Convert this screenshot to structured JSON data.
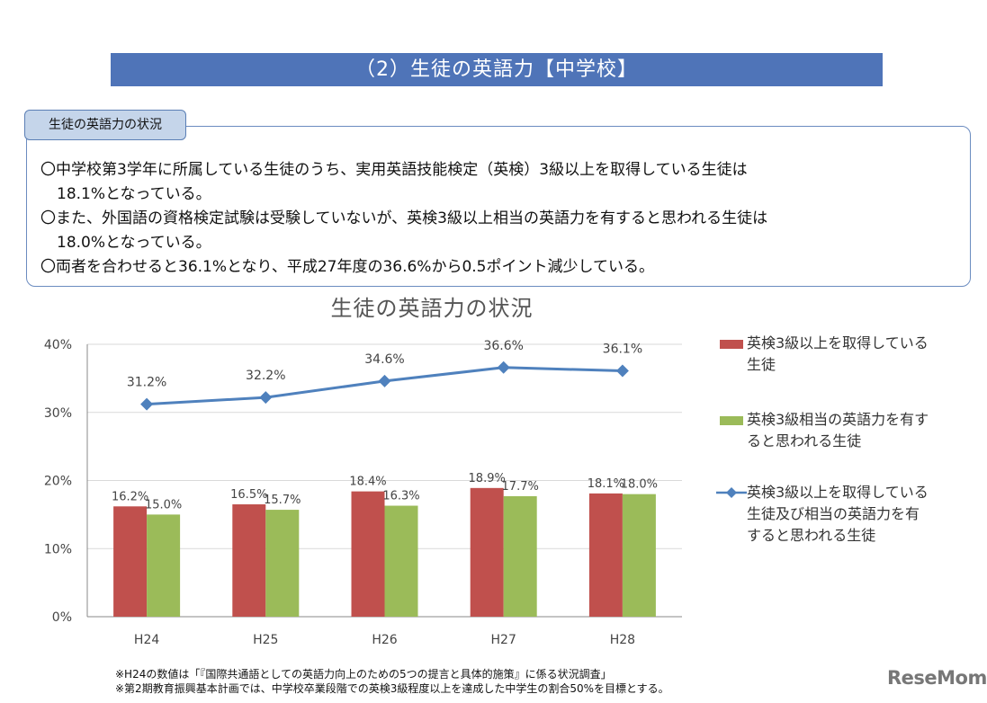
{
  "header": {
    "title": "（2）生徒の英語力【中学校】"
  },
  "summary": {
    "tab_label": "生徒の英語力の状況",
    "bullets": [
      {
        "line1": "〇中学校第3学年に所属している生徒のうち、実用英語技能検定（英検）3級以上を取得している生徒は",
        "line2": "18.1%となっている。"
      },
      {
        "line1": "〇また、外国語の資格検定試験は受験していないが、英検3級以上相当の英語力を有すると思われる生徒は",
        "line2": "18.0%となっている。"
      },
      {
        "line1": "〇両者を合わせると36.1%となり、平成27年度の36.6%から0.5ポイント減少している。",
        "line2": ""
      }
    ]
  },
  "chart_data": {
    "type": "bar",
    "title": "生徒の英語力の状況",
    "categories": [
      "H24",
      "H25",
      "H26",
      "H27",
      "H28"
    ],
    "ylim": [
      0,
      40
    ],
    "yticks": [
      "0%",
      "10%",
      "20%",
      "30%",
      "40%"
    ],
    "grid": true,
    "legend_position": "right",
    "series": [
      {
        "name": "英検3級以上を取得している生徒",
        "type": "bar",
        "color": "#c0504d",
        "values": [
          16.2,
          16.5,
          18.4,
          18.9,
          18.1
        ],
        "labels": [
          "16.2%",
          "16.5%",
          "18.4%",
          "18.9%",
          "18.1%"
        ]
      },
      {
        "name": "英検3級相当の英語力を有すると思われる生徒",
        "type": "bar",
        "color": "#9bbb59",
        "values": [
          15.0,
          15.7,
          16.3,
          17.7,
          18.0
        ],
        "labels": [
          "15.0%",
          "15.7%",
          "16.3%",
          "17.7%",
          "18.0%"
        ]
      },
      {
        "name": "英検3級以上を取得している生徒及び相当の英語力を有すると思われる生徒",
        "type": "line",
        "color": "#4f81bd",
        "values": [
          31.2,
          32.2,
          34.6,
          36.6,
          36.1
        ],
        "labels": [
          "31.2%",
          "32.2%",
          "34.6%",
          "36.6%",
          "36.1%"
        ]
      }
    ]
  },
  "legend": {
    "items": [
      {
        "line1": "英検3級以上を取得している",
        "line2": "生徒",
        "line3": ""
      },
      {
        "line1": "英検3級相当の英語力を有す",
        "line2": "ると思われる生徒",
        "line3": ""
      },
      {
        "line1": "英検3級以上を取得している",
        "line2": "生徒及び相当の英語力を有",
        "line3": "すると思われる生徒"
      }
    ]
  },
  "footnotes": [
    "※H24の数値は「『国際共通語としての英語力向上のための5つの提言と具体的施策』に係る状況調査」",
    "※第2期教育振興基本計画では、中学校卒業段階での英検3級程度以上を達成した中学生の割合50%を目標とする。"
  ],
  "brand": {
    "logo_text": "ReseMom"
  }
}
